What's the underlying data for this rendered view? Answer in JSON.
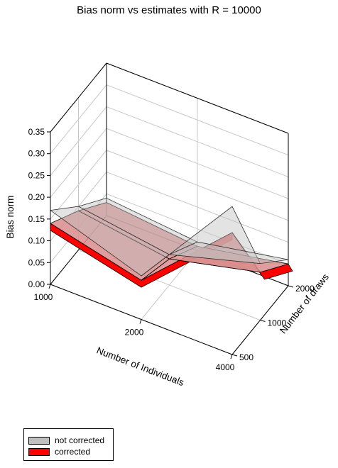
{
  "chart_data": {
    "type": "surface3d",
    "title": "Bias norm vs estimates with R = 10000",
    "xlabel": "Number of Individuals",
    "ylabel": "Number of draws",
    "zlabel": "Bias norm",
    "x": [
      1000,
      2000,
      4000
    ],
    "y": [
      500,
      1000,
      2000
    ],
    "x_ticks": [
      "1000",
      "2000",
      "4000"
    ],
    "y_ticks": [
      "500",
      "1000",
      "2000"
    ],
    "z_ticks": [
      "0.00",
      "0.05",
      "0.10",
      "0.15",
      "0.20",
      "0.25",
      "0.30",
      "0.35"
    ],
    "zlim": [
      0,
      0.35
    ],
    "series": [
      {
        "name": "not corrected",
        "color": "#c0c0c0",
        "z": [
          [
            0.17,
            0.1,
            0.04
          ],
          [
            0.1,
            0.07,
            0.02
          ],
          [
            0.34,
            0.13,
            0.06
          ]
        ]
      },
      {
        "name": "corrected",
        "color": "#ff0000",
        "z": [
          [
            0.14,
            0.09,
            0.03
          ],
          [
            0.09,
            0.06,
            0.01
          ],
          [
            0.28,
            0.11,
            0.05
          ]
        ]
      }
    ],
    "legend_position": "bottom-left",
    "grid": true
  }
}
